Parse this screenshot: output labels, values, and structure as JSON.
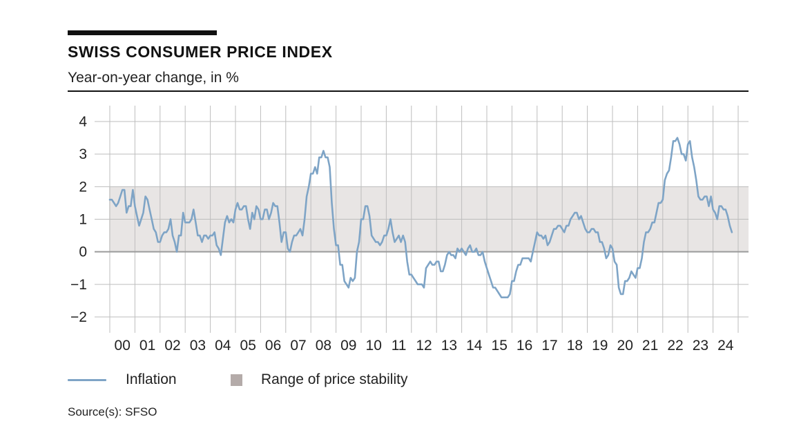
{
  "title": "SWISS CONSUMER PRICE INDEX",
  "subtitle": "Year-on-year change, in %",
  "source": "Source(s): SFSO",
  "colors": {
    "inflation": "#7EA4C6",
    "band": "#E8E5E4",
    "swatch": "#B4ABA9",
    "zero_line": "#9A9A9A",
    "grid": "#BDBDBD"
  },
  "chart_data": {
    "type": "line",
    "title": "SWISS CONSUMER PRICE INDEX",
    "subtitle": "Year-on-year change, in %",
    "xlabel": "",
    "ylabel": "",
    "x_start": 2000.0,
    "ylim": [
      -2.4,
      4.4
    ],
    "yticks": [
      4,
      3,
      2,
      1,
      0,
      -1,
      -2
    ],
    "ytick_labels": [
      "4",
      "3",
      "2",
      "1",
      "0",
      "−1",
      "−2"
    ],
    "xtick_labels": [
      "00",
      "01",
      "02",
      "03",
      "04",
      "05",
      "06",
      "07",
      "08",
      "09",
      "10",
      "11",
      "12",
      "13",
      "14",
      "15",
      "16",
      "17",
      "18",
      "19",
      "20",
      "21",
      "22",
      "23",
      "24"
    ],
    "grid": true,
    "legend_position": "bottom",
    "band": {
      "name": "Range of price stability",
      "from": 0,
      "to": 2
    },
    "series": [
      {
        "name": "Inflation",
        "values": [
          1.6,
          1.6,
          1.5,
          1.4,
          1.5,
          1.7,
          1.9,
          1.9,
          1.2,
          1.4,
          1.4,
          1.9,
          1.4,
          1.1,
          0.8,
          1.0,
          1.2,
          1.7,
          1.6,
          1.3,
          1.0,
          0.7,
          0.6,
          0.3,
          0.3,
          0.5,
          0.6,
          0.6,
          0.7,
          1.0,
          0.5,
          0.3,
          0.0,
          0.5,
          0.5,
          1.2,
          0.9,
          0.9,
          0.9,
          1.0,
          1.3,
          0.9,
          0.5,
          0.5,
          0.3,
          0.5,
          0.5,
          0.4,
          0.5,
          0.5,
          0.6,
          0.2,
          0.1,
          -0.1,
          0.4,
          0.9,
          1.1,
          0.9,
          1.0,
          0.9,
          1.3,
          1.5,
          1.3,
          1.3,
          1.4,
          1.4,
          1.0,
          0.7,
          1.2,
          1.0,
          1.4,
          1.3,
          1.0,
          1.0,
          1.3,
          1.3,
          1.0,
          1.2,
          1.5,
          1.4,
          1.4,
          0.9,
          0.3,
          0.6,
          0.6,
          0.1,
          0.0,
          0.3,
          0.5,
          0.5,
          0.6,
          0.7,
          0.5,
          1.0,
          1.7,
          2.0,
          2.4,
          2.4,
          2.6,
          2.4,
          2.9,
          2.9,
          3.1,
          2.9,
          2.9,
          2.6,
          1.5,
          0.7,
          0.2,
          0.2,
          -0.4,
          -0.4,
          -0.9,
          -1.0,
          -1.1,
          -0.8,
          -0.9,
          -0.8,
          0.0,
          0.3,
          1.0,
          1.0,
          1.4,
          1.4,
          1.1,
          0.5,
          0.4,
          0.3,
          0.3,
          0.2,
          0.3,
          0.5,
          0.5,
          0.7,
          1.0,
          0.6,
          0.3,
          0.4,
          0.5,
          0.3,
          0.5,
          0.3,
          -0.3,
          -0.7,
          -0.7,
          -0.8,
          -0.9,
          -1.0,
          -1.0,
          -1.0,
          -1.1,
          -0.5,
          -0.4,
          -0.3,
          -0.4,
          -0.4,
          -0.3,
          -0.3,
          -0.6,
          -0.6,
          -0.4,
          -0.1,
          0.0,
          -0.1,
          -0.1,
          -0.2,
          0.1,
          0.0,
          0.1,
          0.0,
          -0.1,
          0.1,
          0.2,
          0.0,
          0.0,
          0.1,
          -0.1,
          -0.1,
          0.0,
          -0.3,
          -0.5,
          -0.7,
          -0.9,
          -1.1,
          -1.1,
          -1.2,
          -1.3,
          -1.4,
          -1.4,
          -1.4,
          -1.4,
          -1.3,
          -0.9,
          -0.9,
          -0.6,
          -0.4,
          -0.4,
          -0.2,
          -0.2,
          -0.2,
          -0.2,
          -0.3,
          0.0,
          0.3,
          0.6,
          0.5,
          0.5,
          0.4,
          0.5,
          0.2,
          0.3,
          0.5,
          0.7,
          0.7,
          0.8,
          0.8,
          0.7,
          0.6,
          0.8,
          0.8,
          1.0,
          1.1,
          1.2,
          1.2,
          1.0,
          1.1,
          0.9,
          0.7,
          0.6,
          0.6,
          0.7,
          0.7,
          0.6,
          0.6,
          0.3,
          0.3,
          0.1,
          -0.2,
          -0.1,
          0.2,
          0.1,
          -0.3,
          -0.4,
          -1.1,
          -1.3,
          -1.3,
          -0.9,
          -0.9,
          -0.8,
          -0.6,
          -0.7,
          -0.8,
          -0.5,
          -0.5,
          -0.2,
          0.3,
          0.6,
          0.6,
          0.7,
          0.9,
          0.9,
          1.2,
          1.5,
          1.5,
          1.6,
          2.2,
          2.4,
          2.5,
          2.9,
          3.4,
          3.4,
          3.5,
          3.3,
          3.0,
          3.0,
          2.8,
          3.3,
          3.4,
          2.9,
          2.6,
          2.2,
          1.7,
          1.6,
          1.6,
          1.7,
          1.7,
          1.4,
          1.7,
          1.3,
          1.2,
          1.0,
          1.4,
          1.4,
          1.3,
          1.3,
          1.1,
          0.8,
          0.6
        ]
      }
    ]
  },
  "legend": [
    {
      "label": "Inflation",
      "kind": "line"
    },
    {
      "label": "Range of price stability",
      "kind": "swatch"
    }
  ]
}
